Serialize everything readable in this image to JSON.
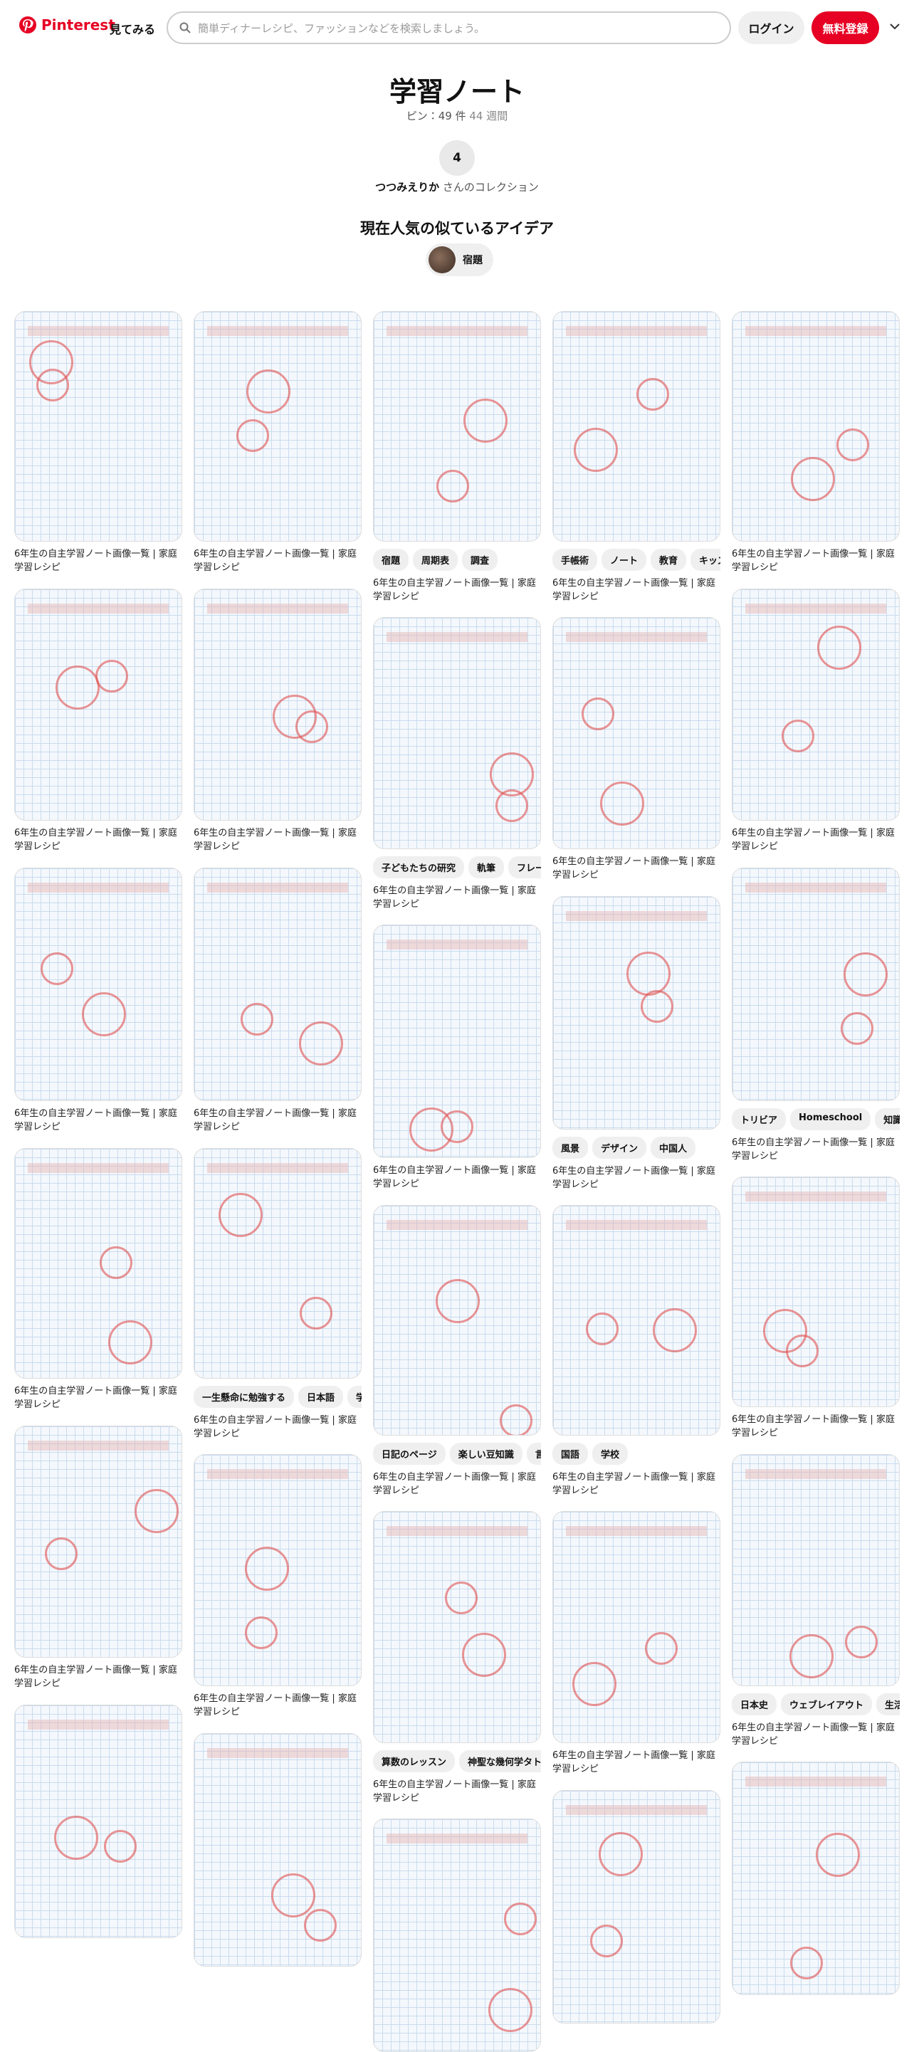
{
  "header": {
    "logo": "Pinterest",
    "explore": "見てみる",
    "search_placeholder": "簡単ディナーレシピ、ファッションなどを検索しましょう。",
    "login": "ログイン",
    "signup": "無料登録"
  },
  "board": {
    "title": "学習ノート",
    "pins": "ピン：49 件",
    "age": "44 週間",
    "collaborators": "4",
    "owner": "つつみえりか",
    "owner_suffix": "さんのコレクション"
  },
  "ideas": {
    "title": "現在人気の似ているアイデア",
    "chip": "宿題"
  },
  "columns": [
    [
      {
        "caption": "6年生の自主学習ノート画像一覧 | 家庭学習レシピ"
      },
      {
        "caption": "6年生の自主学習ノート画像一覧 | 家庭学習レシピ"
      },
      {
        "caption": "6年生の自主学習ノート画像一覧 | 家庭学習レシピ"
      },
      {
        "caption": "6年生の自主学習ノート画像一覧 | 家庭学習レシピ"
      },
      {
        "caption": "6年生の自主学習ノート画像一覧 | 家庭学習レシピ"
      },
      {}
    ],
    [
      {
        "caption": "6年生の自主学習ノート画像一覧 | 家庭学習レシピ"
      },
      {
        "caption": "6年生の自主学習ノート画像一覧 | 家庭学習レシピ"
      },
      {
        "caption": "6年生の自主学習ノート画像一覧 | 家庭学習レシピ"
      },
      {
        "tags": [
          "一生懸命に勉強する",
          "日本語",
          "学習"
        ],
        "caption": "6年生の自主学習ノート画像一覧 | 家庭学習レシピ"
      },
      {
        "caption": "6年生の自主学習ノート画像一覧 | 家庭学習レシピ"
      },
      {}
    ],
    [
      {
        "tags": [
          "宿題",
          "周期表",
          "調査"
        ],
        "caption": "6年生の自主学習ノート画像一覧 | 家庭学習レシピ"
      },
      {
        "tags": [
          "子どもたちの研究",
          "軌筆",
          "フレーズ"
        ],
        "caption": "6年生の自主学習ノート画像一覧 | 家庭学習レシピ"
      },
      {
        "caption": "6年生の自主学習ノート画像一覧 | 家庭学習レシピ"
      },
      {
        "tags": [
          "日記のページ",
          "楽しい豆知識",
          "言語"
        ],
        "caption": "6年生の自主学習ノート画像一覧 | 家庭学習レシピ"
      },
      {
        "tags": [
          "算数のレッスン",
          "神聖な幾何学タトゥ"
        ],
        "caption": "6年生の自主学習ノート画像一覧 | 家庭学習レシピ"
      },
      {}
    ],
    [
      {
        "tags": [
          "手帳術",
          "ノート",
          "教育",
          "キッズ"
        ],
        "caption": "6年生の自主学習ノート画像一覧 | 家庭学習レシピ"
      },
      {
        "caption": "6年生の自主学習ノート画像一覧 | 家庭学習レシピ"
      },
      {
        "tags": [
          "風景",
          "デザイン",
          "中国人"
        ],
        "caption": "6年生の自主学習ノート画像一覧 | 家庭学習レシピ"
      },
      {
        "tags": [
          "国語",
          "学校"
        ],
        "caption": "6年生の自主学習ノート画像一覧 | 家庭学習レシピ"
      },
      {
        "caption": "6年生の自主学習ノート画像一覧 | 家庭学習レシピ"
      },
      {}
    ],
    [
      {
        "caption": "6年生の自主学習ノート画像一覧 | 家庭学習レシピ"
      },
      {
        "caption": "6年生の自主学習ノート画像一覧 | 家庭学習レシピ"
      },
      {
        "tags": [
          "トリビア",
          "Homeschool",
          "知識"
        ],
        "caption": "6年生の自主学習ノート画像一覧 | 家庭学習レシピ"
      },
      {
        "caption": "6年生の自主学習ノート画像一覧 | 家庭学習レシピ"
      },
      {
        "tags": [
          "日本史",
          "ウェブレイアウト",
          "生活の"
        ],
        "caption": "6年生の自主学習ノート画像一覧 | 家庭学習レシピ"
      },
      {}
    ]
  ]
}
